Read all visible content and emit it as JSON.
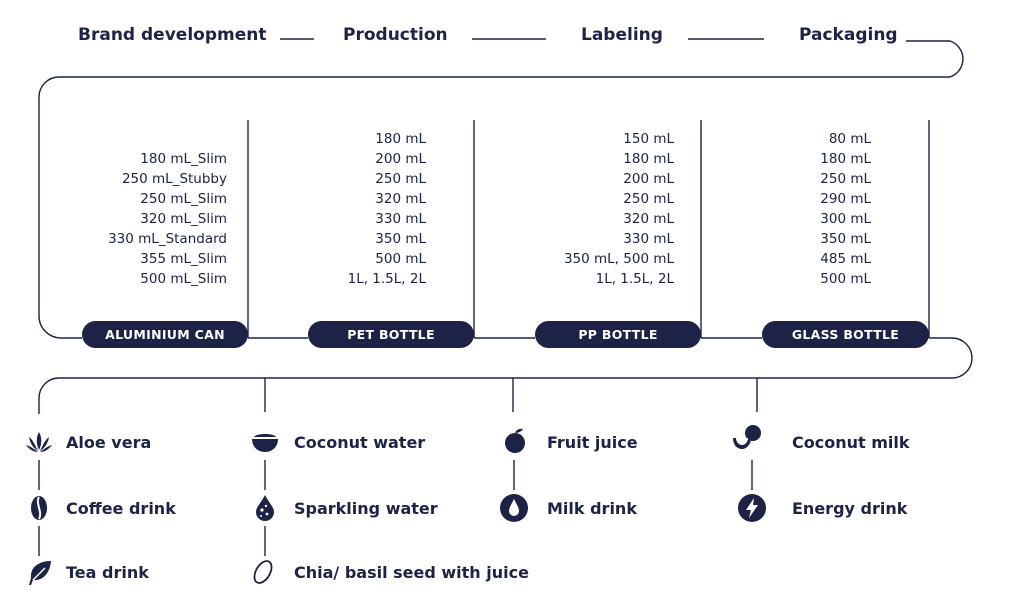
{
  "steps": [
    "Brand development",
    "Production",
    "Labeling",
    "Packaging"
  ],
  "containers": [
    {
      "label": "ALUMINIUM CAN",
      "sizes": [
        "180 mL_Slim",
        "250 mL_Stubby",
        "250 mL_Slim",
        "320 mL_Slim",
        "330 mL_Standard",
        "355 mL_Slim",
        "500 mL_Slim"
      ]
    },
    {
      "label": "PET BOTTLE",
      "sizes": [
        "180 mL",
        "200 mL",
        "250 mL",
        "320 mL",
        "330 mL",
        "350 mL",
        "500 mL",
        "1L, 1.5L, 2L"
      ]
    },
    {
      "label": "PP BOTTLE",
      "sizes": [
        "150 mL",
        "180 mL",
        "200 mL",
        "250 mL",
        "320 mL",
        "330 mL",
        "350 mL, 500 mL",
        "1L, 1.5L, 2L"
      ]
    },
    {
      "label": "GLASS BOTTLE",
      "sizes": [
        "80 mL",
        "180 mL",
        "250 mL",
        "290 mL",
        "300 mL",
        "350 mL",
        "485 mL",
        "500 mL"
      ]
    }
  ],
  "drinks": [
    {
      "label": "Aloe vera",
      "icon": "aloe-vera-icon"
    },
    {
      "label": "Coffee drink",
      "icon": "coffee-bean-icon"
    },
    {
      "label": "Tea drink",
      "icon": "tea-leaf-icon"
    },
    {
      "label": "Coconut water",
      "icon": "coconut-half-icon"
    },
    {
      "label": "Sparkling water",
      "icon": "sparkling-drop-icon"
    },
    {
      "label": "Chia/ basil seed with juice",
      "icon": "seed-icon"
    },
    {
      "label": "Fruit juice",
      "icon": "fruit-icon"
    },
    {
      "label": "Milk drink",
      "icon": "milk-drop-icon"
    },
    {
      "label": "Coconut milk",
      "icon": "coconut-pieces-icon"
    },
    {
      "label": "Energy drink",
      "icon": "lightning-icon"
    }
  ],
  "colors": {
    "navy": "#1c2347",
    "white": "#ffffff"
  }
}
